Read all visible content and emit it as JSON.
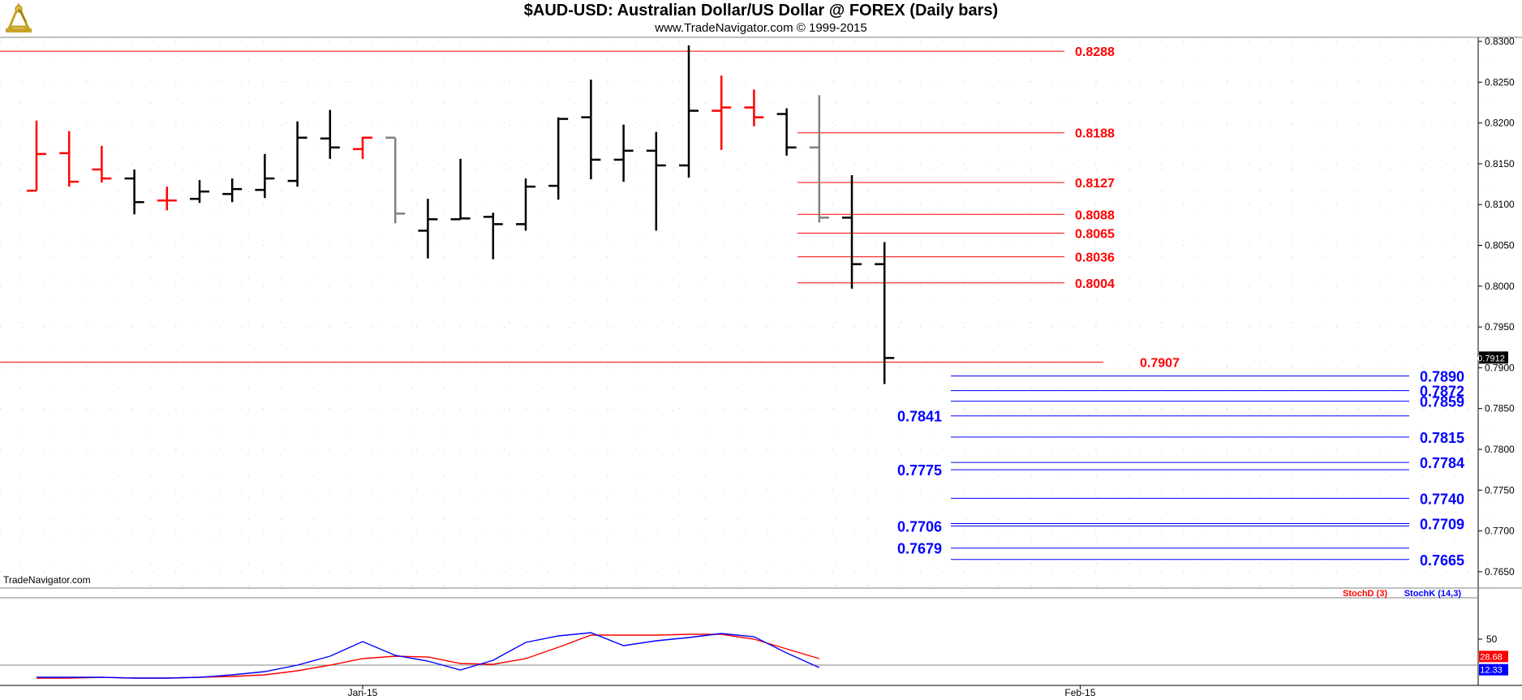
{
  "header": {
    "title": "$AUD-USD:  Australian Dollar/US Dollar @ FOREX  (Daily bars)",
    "subtitle": "www.TradeNavigator.com © 1999-2015",
    "logo_icon": "sextant-logo-icon"
  },
  "watermark": "TradeNavigator.com",
  "colors": {
    "up_bar": "#000000",
    "down_bar": "#ff0000",
    "neutral_bar": "#808080",
    "resistance_line": "#ff0000",
    "support_line": "#0000ff",
    "stoch_d": "#ff0000",
    "stoch_k": "#0000ff",
    "price_label_bg": "#000000"
  },
  "chart_data": [
    {
      "type": "ohlc",
      "title": "$AUD-USD:  Australian Dollar/US Dollar @ FOREX  (Daily bars)",
      "ylim": [
        0.763,
        0.8305
      ],
      "yticks": [
        "0.8300",
        "0.8250",
        "0.8200",
        "0.8150",
        "0.8100",
        "0.8050",
        "0.8000",
        "0.7950",
        "0.7900",
        "0.7850",
        "0.7800",
        "0.7750",
        "0.7700",
        "0.7650"
      ],
      "xticks": [
        {
          "label": "Jan-15",
          "index": 10
        },
        {
          "label": "Feb-15",
          "index": 32
        }
      ],
      "last_price": "0.7912",
      "bars": [
        {
          "o": 0.8117,
          "h": 0.8203,
          "l": 0.8117,
          "c": 0.8162,
          "color": "red"
        },
        {
          "o": 0.8163,
          "h": 0.819,
          "l": 0.8122,
          "c": 0.8128,
          "color": "red"
        },
        {
          "o": 0.8143,
          "h": 0.8172,
          "l": 0.8127,
          "c": 0.8132,
          "color": "red"
        },
        {
          "o": 0.8132,
          "h": 0.8143,
          "l": 0.8088,
          "c": 0.8103,
          "color": "black"
        },
        {
          "o": 0.8105,
          "h": 0.8122,
          "l": 0.8093,
          "c": 0.8105,
          "color": "red"
        },
        {
          "o": 0.8107,
          "h": 0.813,
          "l": 0.8102,
          "c": 0.8116,
          "color": "black"
        },
        {
          "o": 0.8113,
          "h": 0.8132,
          "l": 0.8103,
          "c": 0.8119,
          "color": "black"
        },
        {
          "o": 0.8118,
          "h": 0.8162,
          "l": 0.8108,
          "c": 0.8132,
          "color": "black"
        },
        {
          "o": 0.8129,
          "h": 0.8202,
          "l": 0.8122,
          "c": 0.8182,
          "color": "black"
        },
        {
          "o": 0.8181,
          "h": 0.8216,
          "l": 0.8156,
          "c": 0.817,
          "color": "black"
        },
        {
          "o": 0.8168,
          "h": 0.8183,
          "l": 0.8156,
          "c": 0.8182,
          "color": "red"
        },
        {
          "o": 0.8182,
          "h": 0.8182,
          "l": 0.8077,
          "c": 0.8089,
          "color": "gray"
        },
        {
          "o": 0.8068,
          "h": 0.8107,
          "l": 0.8034,
          "c": 0.8082,
          "color": "black"
        },
        {
          "o": 0.8082,
          "h": 0.8156,
          "l": 0.8082,
          "c": 0.8083,
          "color": "black"
        },
        {
          "o": 0.8085,
          "h": 0.809,
          "l": 0.8033,
          "c": 0.8076,
          "color": "black"
        },
        {
          "o": 0.8076,
          "h": 0.8132,
          "l": 0.8068,
          "c": 0.8122,
          "color": "black"
        },
        {
          "o": 0.8123,
          "h": 0.8207,
          "l": 0.8106,
          "c": 0.8205,
          "color": "black"
        },
        {
          "o": 0.8207,
          "h": 0.8253,
          "l": 0.8131,
          "c": 0.8155,
          "color": "black"
        },
        {
          "o": 0.8155,
          "h": 0.8198,
          "l": 0.8128,
          "c": 0.8166,
          "color": "black"
        },
        {
          "o": 0.8166,
          "h": 0.8189,
          "l": 0.8068,
          "c": 0.8148,
          "color": "black"
        },
        {
          "o": 0.8148,
          "h": 0.8295,
          "l": 0.8133,
          "c": 0.8215,
          "color": "black"
        },
        {
          "o": 0.8215,
          "h": 0.8258,
          "l": 0.8167,
          "c": 0.8219,
          "color": "red"
        },
        {
          "o": 0.8219,
          "h": 0.8241,
          "l": 0.8196,
          "c": 0.8207,
          "color": "red"
        },
        {
          "o": 0.8211,
          "h": 0.8218,
          "l": 0.816,
          "c": 0.817,
          "color": "black"
        },
        {
          "o": 0.817,
          "h": 0.8234,
          "l": 0.8078,
          "c": 0.8084,
          "color": "gray"
        },
        {
          "o": 0.8084,
          "h": 0.8136,
          "l": 0.7997,
          "c": 0.8027,
          "color": "black"
        },
        {
          "o": 0.8027,
          "h": 0.8054,
          "l": 0.788,
          "c": 0.7912,
          "color": "black"
        }
      ],
      "resistance_levels": [
        "0.8288",
        "0.8188",
        "0.8127",
        "0.8088",
        "0.8065",
        "0.8036",
        "0.8004",
        "0.7907"
      ],
      "support_levels_right": [
        "0.7890",
        "0.7872",
        "0.7859",
        "0.7815",
        "0.7784",
        "0.7740",
        "0.7709",
        "0.7665"
      ],
      "support_levels_left": [
        "0.7841",
        "0.7775",
        "0.7706",
        "0.7679"
      ]
    },
    {
      "type": "line",
      "ylim": [
        0,
        100
      ],
      "yticks": [
        "50"
      ],
      "legend": "top-right",
      "series": [
        {
          "name": "StochD (3)",
          "color": "#ff0000",
          "last": "28.68",
          "values": [
            2,
            2,
            3,
            2,
            2,
            3,
            4,
            6,
            11,
            18,
            26,
            29,
            28,
            20,
            19,
            26,
            40,
            55,
            55,
            55,
            56,
            56,
            50,
            38,
            26,
            null,
            null
          ]
        },
        {
          "name": "StochK (14,3)",
          "color": "#0000ff",
          "last": "12.33",
          "values": [
            3,
            3,
            3,
            2,
            2,
            3,
            6,
            10,
            18,
            29,
            47,
            30,
            23,
            12,
            24,
            46,
            54,
            58,
            42,
            48,
            52,
            57,
            53,
            33,
            15,
            null,
            null
          ]
        }
      ]
    }
  ]
}
